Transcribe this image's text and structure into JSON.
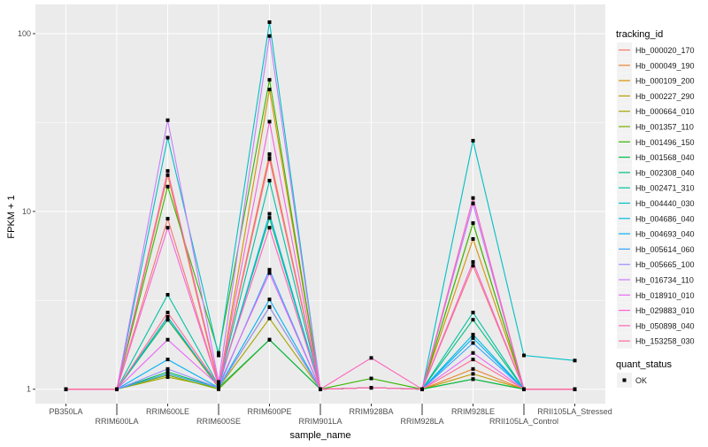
{
  "chart_data": {
    "type": "line",
    "title": "",
    "xlabel": "sample_name",
    "ylabel": "FPKM + 1",
    "y_scale": "log10",
    "ylim": [
      0.83,
      146
    ],
    "y_ticks": [
      1,
      10,
      100
    ],
    "y_tick_labels": [
      "1",
      "10",
      "100"
    ],
    "grid": true,
    "legend_position": "right",
    "categories": [
      "PB350LA",
      "RRIM600LA",
      "RRIM600LE",
      "RRIM600SE",
      "RRIM600PE",
      "RRIM901LA",
      "RRIM928BA",
      "RRIM928LA",
      "RRIM928LE",
      "RRII105LA_Control",
      "RRII105LA_Stressed"
    ],
    "legend_title": "tracking_id",
    "series": [
      {
        "name": "Hb_000020_170",
        "color": "#F8766D",
        "values": [
          1,
          1,
          9.1,
          1.05,
          19.7,
          1,
          1.02,
          1,
          4.95,
          1,
          1
        ]
      },
      {
        "name": "Hb_000049_190",
        "color": "#EA8331",
        "values": [
          1,
          1,
          16,
          1.05,
          21,
          1,
          1.02,
          1,
          1.3,
          1,
          1
        ]
      },
      {
        "name": "Hb_000109_200",
        "color": "#D89000",
        "values": [
          1,
          1,
          2.46,
          1.02,
          48.5,
          1,
          1.02,
          1,
          7,
          1,
          1
        ]
      },
      {
        "name": "Hb_000227_290",
        "color": "#C09B00",
        "values": [
          1,
          1,
          2.55,
          1.02,
          2.9,
          1,
          1.02,
          1,
          1.22,
          1,
          1
        ]
      },
      {
        "name": "Hb_000664_010",
        "color": "#A3A500",
        "values": [
          1,
          1,
          1.17,
          1.02,
          2.5,
          1,
          1.02,
          1,
          8.6,
          1,
          1
        ]
      },
      {
        "name": "Hb_001357_110",
        "color": "#7CAE00",
        "values": [
          1,
          1,
          1.2,
          1.0,
          1.9,
          1,
          1.02,
          1,
          1.14,
          1,
          1
        ]
      },
      {
        "name": "Hb_001496_150",
        "color": "#39B600",
        "values": [
          1,
          1,
          13.8,
          1.6,
          55,
          1,
          1.15,
          1,
          8.6,
          1,
          1
        ]
      },
      {
        "name": "Hb_001568_040",
        "color": "#00BB4E",
        "values": [
          1,
          1,
          1.25,
          1.02,
          1.9,
          1,
          1.02,
          1,
          1.14,
          1,
          1
        ]
      },
      {
        "name": "Hb_002308_040",
        "color": "#00BF7D",
        "values": [
          1,
          1,
          2.46,
          1.05,
          9.2,
          1,
          1.02,
          1,
          2.46,
          1,
          1
        ]
      },
      {
        "name": "Hb_002471_310",
        "color": "#00C1A3",
        "values": [
          1,
          1,
          3.4,
          1.05,
          14.9,
          1,
          1.02,
          1,
          2.7,
          1,
          1
        ]
      },
      {
        "name": "Hb_004440_030",
        "color": "#00BFC4",
        "values": [
          1,
          1,
          26,
          1.55,
          116,
          1,
          1.02,
          1,
          25,
          1.55,
          1.45
        ]
      },
      {
        "name": "Hb_004686_040",
        "color": "#00BAE0",
        "values": [
          1,
          1,
          2.55,
          1.03,
          9.7,
          1,
          1.02,
          1,
          2.03,
          1,
          1
        ]
      },
      {
        "name": "Hb_004693_040",
        "color": "#00B0F6",
        "values": [
          1,
          1,
          1.47,
          1.02,
          3.2,
          1,
          1.02,
          1,
          1.94,
          1,
          1
        ]
      },
      {
        "name": "Hb_005614_060",
        "color": "#35A2FF",
        "values": [
          1,
          1,
          1.22,
          1.02,
          4.7,
          1,
          1.02,
          1,
          1.82,
          1,
          1
        ]
      },
      {
        "name": "Hb_005665_100",
        "color": "#9590FF",
        "values": [
          1,
          1,
          1.3,
          1.02,
          2.9,
          1,
          1.02,
          1,
          11.1,
          1,
          1
        ]
      },
      {
        "name": "Hb_016734_110",
        "color": "#C77CFF",
        "values": [
          1,
          1,
          32.6,
          1.1,
          97,
          1,
          1.02,
          1,
          11.1,
          1,
          1
        ]
      },
      {
        "name": "Hb_018910_010",
        "color": "#E76BF3",
        "values": [
          1,
          1,
          1.9,
          1.05,
          4.5,
          1,
          1.02,
          1,
          1.6,
          1,
          1
        ]
      },
      {
        "name": "Hb_029883_010",
        "color": "#FA62DB",
        "values": [
          1,
          1,
          8.1,
          1.05,
          32,
          1,
          1.02,
          1,
          5.2,
          1,
          1
        ]
      },
      {
        "name": "Hb_050898_040",
        "color": "#FF62BC",
        "values": [
          1,
          1,
          16.9,
          1.08,
          8.1,
          1,
          1.5,
          1,
          11.9,
          1,
          1
        ]
      },
      {
        "name": "Hb_153258_030",
        "color": "#FF6C91",
        "values": [
          1,
          1,
          2.7,
          1.05,
          20,
          1,
          1.02,
          1,
          1.47,
          1,
          1
        ]
      }
    ],
    "shape_legend": {
      "title": "quant_status",
      "items": [
        "OK"
      ]
    }
  }
}
